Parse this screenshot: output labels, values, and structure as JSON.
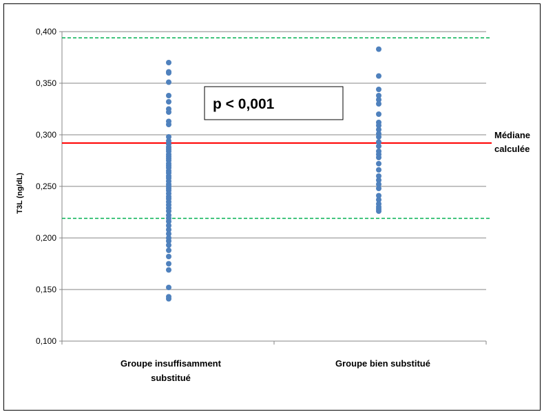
{
  "chart_data": {
    "type": "scatter",
    "ylabel": "T3L (ng/dL)",
    "ylim": [
      0.1,
      0.4
    ],
    "yticks": [
      0.1,
      0.15,
      0.2,
      0.25,
      0.3,
      0.35,
      0.4
    ],
    "ytick_labels": [
      "0,100",
      "0,150",
      "0,200",
      "0,250",
      "0,300",
      "0,350",
      "0,400"
    ],
    "grid": true,
    "categories": [
      "Groupe insuffisamment substitué",
      "Groupe  bien substitué"
    ],
    "category_label_lines": [
      [
        "Groupe insuffisamment",
        "substitué"
      ],
      [
        "Groupe  bien substitué"
      ]
    ],
    "series": [
      {
        "category": "Groupe insuffisamment substitué",
        "color": "#4f81bd",
        "values": [
          0.37,
          0.361,
          0.36,
          0.351,
          0.338,
          0.332,
          0.325,
          0.322,
          0.313,
          0.31,
          0.298,
          0.294,
          0.291,
          0.288,
          0.286,
          0.284,
          0.281,
          0.279,
          0.277,
          0.275,
          0.272,
          0.27,
          0.268,
          0.265,
          0.263,
          0.26,
          0.258,
          0.255,
          0.252,
          0.25,
          0.248,
          0.246,
          0.243,
          0.24,
          0.238,
          0.235,
          0.232,
          0.229,
          0.226,
          0.222,
          0.219,
          0.216,
          0.212,
          0.208,
          0.204,
          0.2,
          0.197,
          0.193,
          0.188,
          0.182,
          0.175,
          0.169,
          0.152,
          0.143,
          0.141
        ]
      },
      {
        "category": "Groupe  bien substitué",
        "color": "#4f81bd",
        "values": [
          0.383,
          0.357,
          0.344,
          0.338,
          0.334,
          0.33,
          0.32,
          0.312,
          0.309,
          0.305,
          0.301,
          0.298,
          0.293,
          0.289,
          0.284,
          0.281,
          0.278,
          0.272,
          0.266,
          0.26,
          0.256,
          0.252,
          0.248,
          0.241,
          0.237,
          0.233,
          0.23,
          0.228,
          0.226
        ]
      }
    ],
    "reference_lines": [
      {
        "value": 0.394,
        "color": "#00b050",
        "style": "dashed"
      },
      {
        "value": 0.292,
        "color": "#ff0000",
        "style": "solid",
        "label_lines": [
          "Médiane",
          "calculée"
        ]
      },
      {
        "value": 0.219,
        "color": "#00b050",
        "style": "dashed"
      }
    ],
    "annotation": "p < 0,001",
    "gridline_color": "#868686"
  }
}
